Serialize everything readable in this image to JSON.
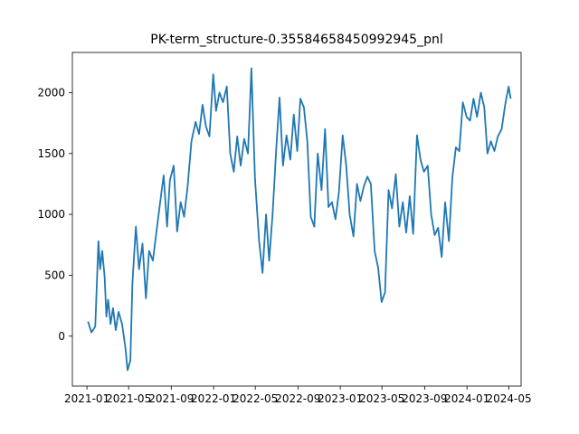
{
  "chart_data": {
    "type": "line",
    "title": "PK-term_structure-0.35584658450992945_pnl",
    "xlabel": "",
    "ylabel": "",
    "grid": false,
    "xlim": [
      "2020-11-20",
      "2024-06-05"
    ],
    "ylim": [
      -410,
      2330
    ],
    "x_ticks": [
      "2021-01-01",
      "2021-05-01",
      "2021-09-01",
      "2022-01-01",
      "2022-05-01",
      "2022-09-01",
      "2023-01-01",
      "2023-05-01",
      "2023-09-01",
      "2024-01-01",
      "2024-05-01"
    ],
    "x_tick_labels": [
      "2021-01",
      "2021-05",
      "2021-09",
      "2022-01",
      "2022-05",
      "2022-09",
      "2023-01",
      "2023-05",
      "2023-09",
      "2024-01",
      "2024-05"
    ],
    "y_ticks": [
      0,
      500,
      1000,
      1500,
      2000
    ],
    "y_tick_labels": [
      "0",
      "500",
      "1000",
      "1500",
      "2000"
    ],
    "series": [
      {
        "color": "#1f77b4",
        "x": [
          "2021-01-04",
          "2021-01-14",
          "2021-01-25",
          "2021-02-03",
          "2021-02-08",
          "2021-02-14",
          "2021-02-21",
          "2021-02-26",
          "2021-03-03",
          "2021-03-10",
          "2021-03-17",
          "2021-03-25",
          "2021-04-02",
          "2021-04-12",
          "2021-04-22",
          "2021-04-28",
          "2021-05-06",
          "2021-05-12",
          "2021-05-22",
          "2021-05-31",
          "2021-06-10",
          "2021-06-20",
          "2021-06-29",
          "2021-07-10",
          "2021-07-20",
          "2021-07-30",
          "2021-08-10",
          "2021-08-20",
          "2021-08-28",
          "2021-09-08",
          "2021-09-18",
          "2021-09-28",
          "2021-10-08",
          "2021-10-18",
          "2021-10-29",
          "2021-11-10",
          "2021-11-20",
          "2021-11-30",
          "2021-12-10",
          "2021-12-20",
          "2021-12-31",
          "2022-01-08",
          "2022-01-18",
          "2022-01-28",
          "2022-02-08",
          "2022-02-18",
          "2022-02-28",
          "2022-03-10",
          "2022-03-20",
          "2022-03-30",
          "2022-04-10",
          "2022-04-20",
          "2022-04-30",
          "2022-05-12",
          "2022-05-22",
          "2022-06-01",
          "2022-06-10",
          "2022-06-20",
          "2022-06-30",
          "2022-07-10",
          "2022-07-20",
          "2022-07-30",
          "2022-08-10",
          "2022-08-20",
          "2022-08-30",
          "2022-09-08",
          "2022-09-18",
          "2022-09-28",
          "2022-10-08",
          "2022-10-18",
          "2022-10-28",
          "2022-11-08",
          "2022-11-18",
          "2022-11-28",
          "2022-12-08",
          "2022-12-18",
          "2022-12-28",
          "2023-01-08",
          "2023-01-18",
          "2023-01-28",
          "2023-02-08",
          "2023-02-18",
          "2023-02-28",
          "2023-03-10",
          "2023-03-20",
          "2023-03-30",
          "2023-04-10",
          "2023-04-20",
          "2023-04-30",
          "2023-05-10",
          "2023-05-20",
          "2023-05-30",
          "2023-06-10",
          "2023-06-20",
          "2023-06-30",
          "2023-07-10",
          "2023-07-20",
          "2023-07-30",
          "2023-08-10",
          "2023-08-20",
          "2023-08-30",
          "2023-09-10",
          "2023-09-20",
          "2023-09-30",
          "2023-10-10",
          "2023-10-20",
          "2023-10-30",
          "2023-11-10",
          "2023-11-20",
          "2023-11-30",
          "2023-12-10",
          "2023-12-20",
          "2023-12-31",
          "2024-01-10",
          "2024-01-20",
          "2024-01-30",
          "2024-02-10",
          "2024-02-20",
          "2024-02-29",
          "2024-03-10",
          "2024-03-20",
          "2024-03-30",
          "2024-04-10",
          "2024-04-20",
          "2024-04-30",
          "2024-05-06"
        ],
        "y": [
          120,
          30,
          80,
          780,
          550,
          700,
          480,
          160,
          300,
          100,
          230,
          50,
          200,
          100,
          -100,
          -280,
          -200,
          440,
          900,
          550,
          760,
          310,
          700,
          620,
          850,
          1080,
          1320,
          900,
          1280,
          1400,
          860,
          1100,
          980,
          1230,
          1600,
          1760,
          1660,
          1900,
          1720,
          1640,
          2150,
          1850,
          2000,
          1920,
          2050,
          1500,
          1350,
          1640,
          1400,
          1620,
          1500,
          2200,
          1300,
          780,
          520,
          1000,
          620,
          1000,
          1520,
          1960,
          1400,
          1650,
          1450,
          1820,
          1520,
          1950,
          1880,
          1600,
          980,
          900,
          1500,
          1200,
          1700,
          1060,
          1100,
          960,
          1180,
          1650,
          1400,
          1000,
          820,
          1250,
          1110,
          1230,
          1310,
          1250,
          700,
          560,
          280,
          360,
          1200,
          1050,
          1330,
          900,
          1100,
          850,
          1150,
          840,
          1650,
          1450,
          1350,
          1400,
          1000,
          830,
          890,
          650,
          1100,
          780,
          1300,
          1550,
          1520,
          1920,
          1800,
          1770,
          1950,
          1800,
          2000,
          1880,
          1500,
          1600,
          1520,
          1640,
          1700,
          1900,
          2050,
          1950
        ]
      }
    ]
  }
}
